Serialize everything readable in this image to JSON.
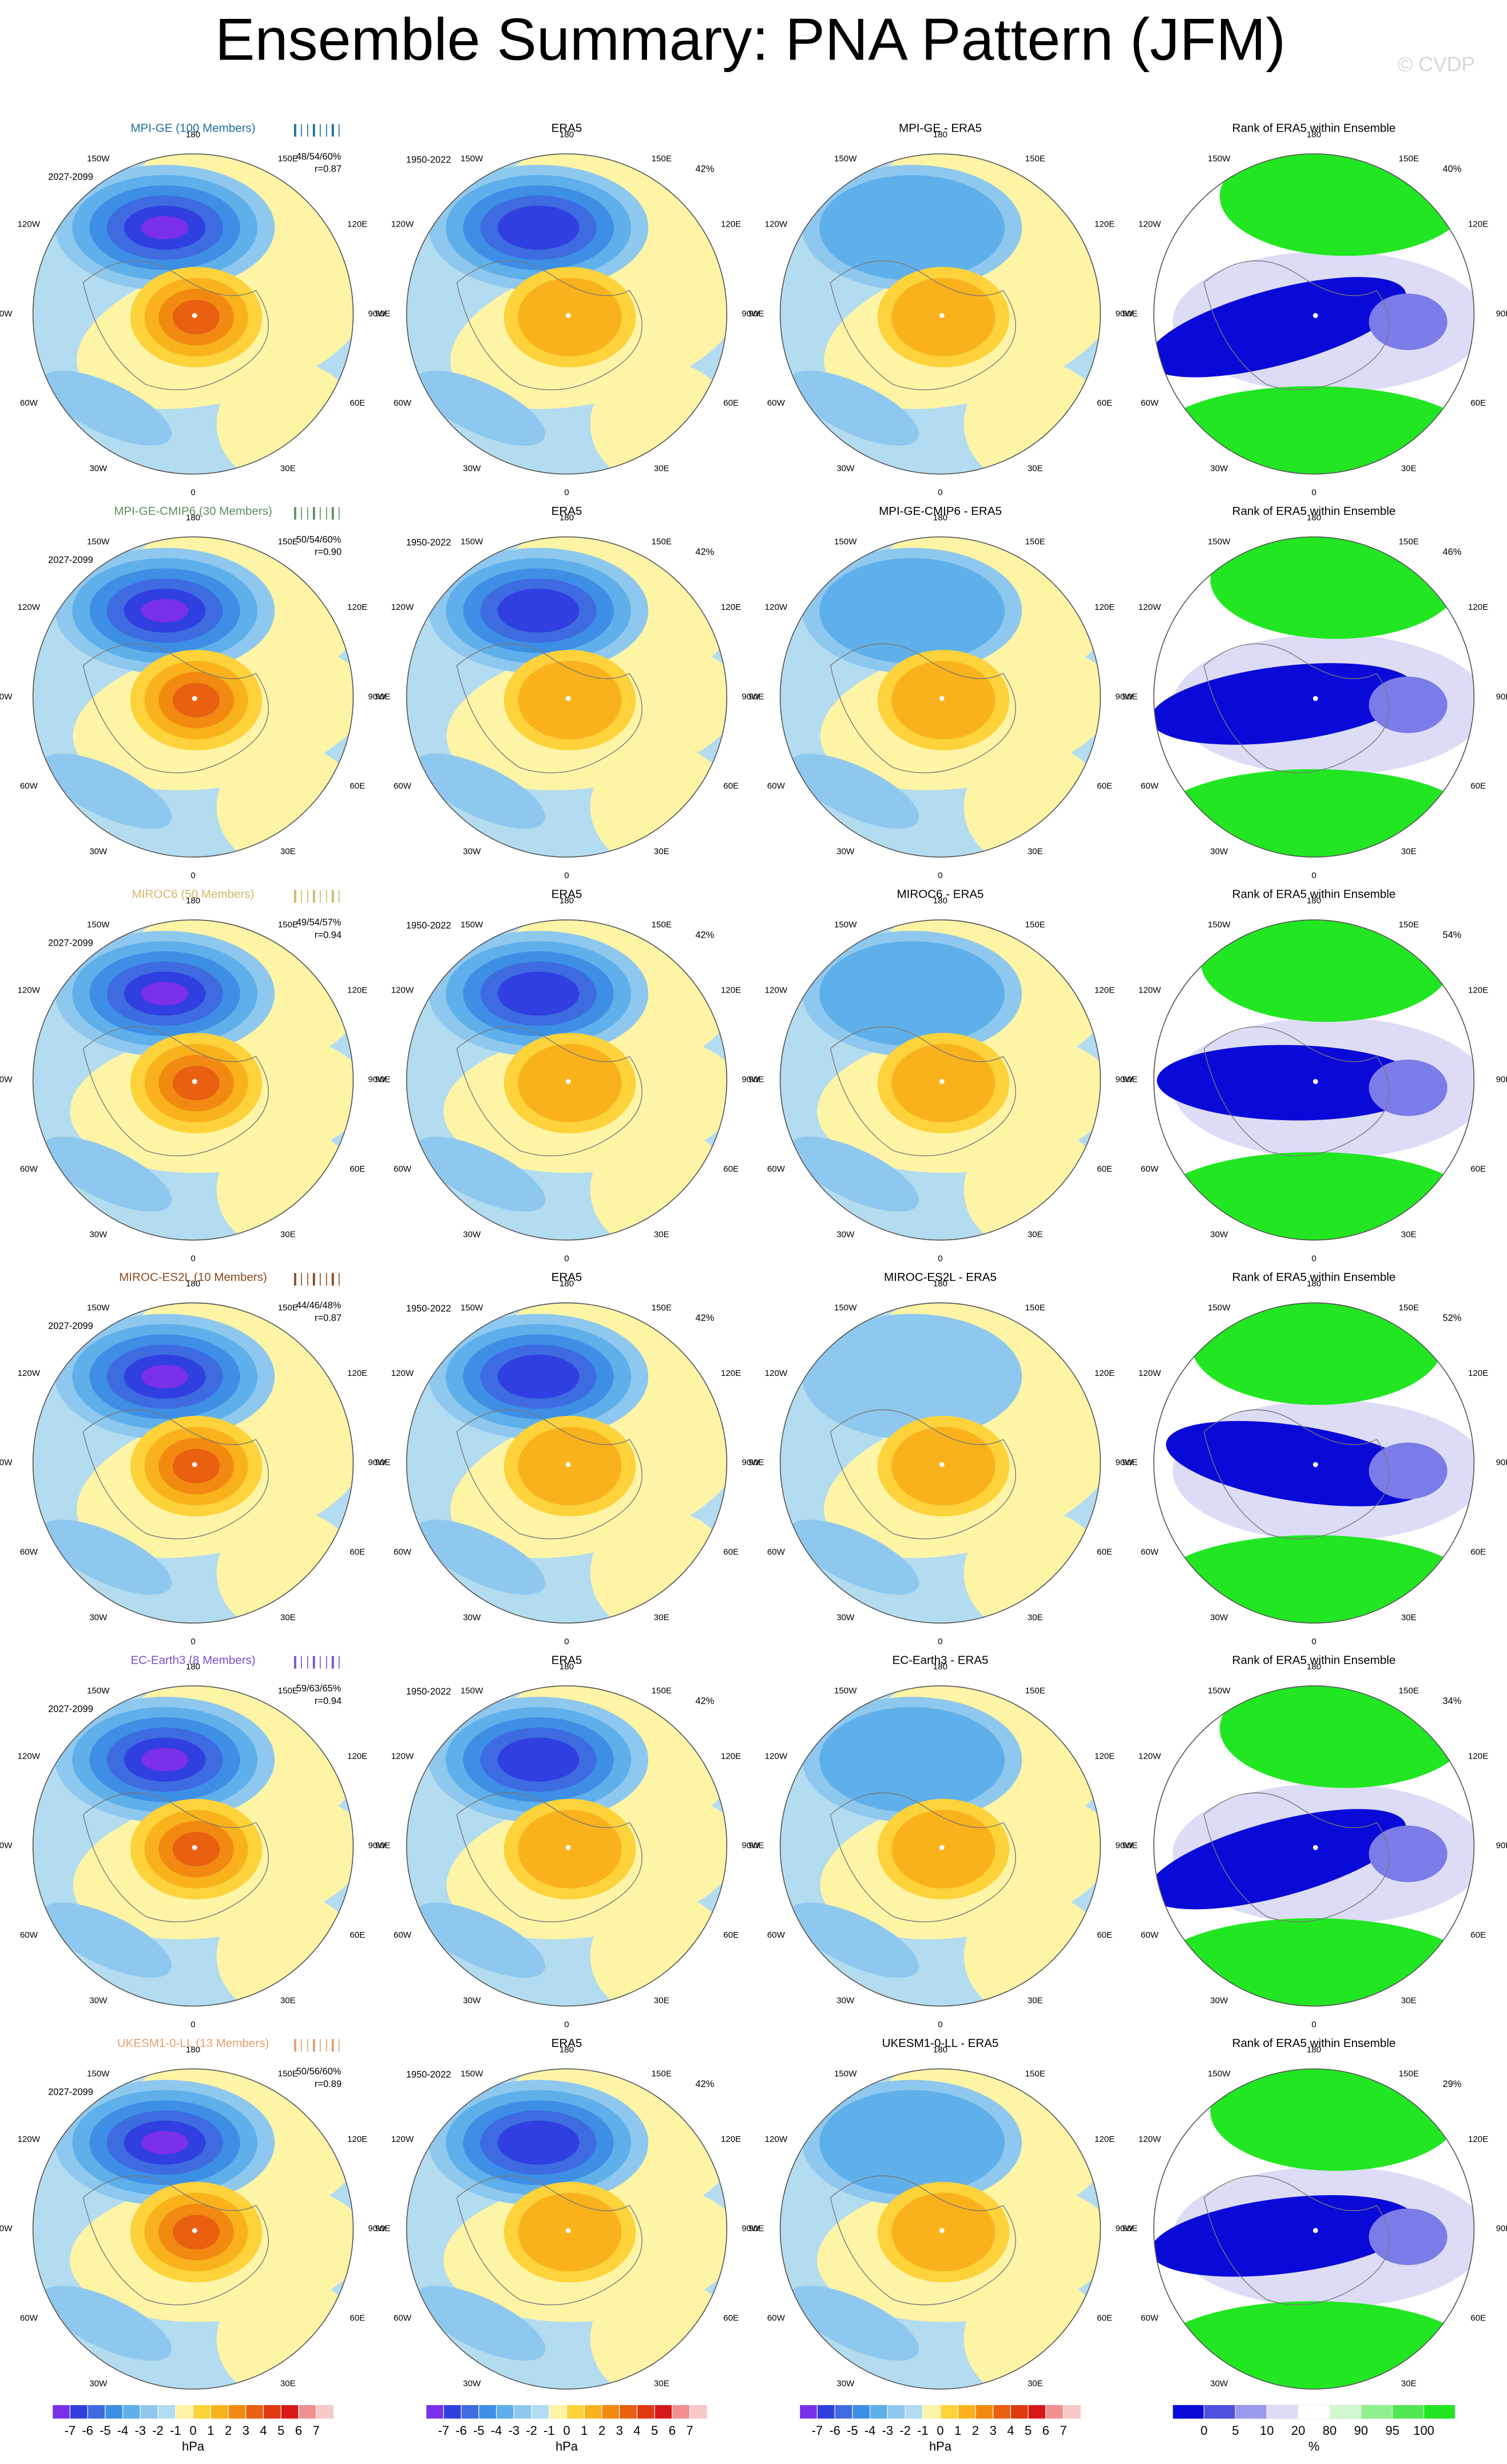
{
  "title": "Ensemble Summary: PNA Pattern (JFM)",
  "watermark": "© CVDP",
  "lon_labels": [
    "180",
    "150W",
    "150E",
    "120W",
    "120E",
    "90W",
    "90E",
    "60W",
    "60E",
    "30W",
    "30E",
    "0"
  ],
  "rows": [
    {
      "model": "MPI-GE (100 Members)",
      "model_color": "#1f6e9c",
      "period": "2027-2099",
      "stats": "48/54/60%",
      "r": "r=0.87",
      "obs_title": "ERA5",
      "obs_period": "1950-2022",
      "obs_pct": "42%",
      "diff_title": "MPI-GE - ERA5",
      "rank_title": "Rank of ERA5 within Ensemble",
      "rank_pct": "40%"
    },
    {
      "model": "MPI-GE-CMIP6 (30 Members)",
      "model_color": "#5e8f5e",
      "period": "2027-2099",
      "stats": "50/54/60%",
      "r": "r=0.90",
      "obs_title": "ERA5",
      "obs_period": "1950-2022",
      "obs_pct": "42%",
      "diff_title": "MPI-GE-CMIP6 - ERA5",
      "rank_title": "Rank of ERA5 within Ensemble",
      "rank_pct": "46%"
    },
    {
      "model": "MIROC6 (50 Members)",
      "model_color": "#cdb86a",
      "period": "2027-2099",
      "stats": "49/54/57%",
      "r": "r=0.94",
      "obs_title": "ERA5",
      "obs_period": "1950-2022",
      "obs_pct": "42%",
      "diff_title": "MIROC6 - ERA5",
      "rank_title": "Rank of ERA5 within Ensemble",
      "rank_pct": "54%"
    },
    {
      "model": "MIROC-ES2L (10 Members)",
      "model_color": "#8b4a1c",
      "period": "2027-2099",
      "stats": "44/46/48%",
      "r": "r=0.87",
      "obs_title": "ERA5",
      "obs_period": "1950-2022",
      "obs_pct": "42%",
      "diff_title": "MIROC-ES2L - ERA5",
      "rank_title": "Rank of ERA5 within Ensemble",
      "rank_pct": "52%"
    },
    {
      "model": "EC-Earth3 (8 Members)",
      "model_color": "#7a4fd0",
      "period": "2027-2099",
      "stats": "59/63/65%",
      "r": "r=0.94",
      "obs_title": "ERA5",
      "obs_period": "1950-2022",
      "obs_pct": "42%",
      "diff_title": "EC-Earth3 - ERA5",
      "rank_title": "Rank of ERA5 within Ensemble",
      "rank_pct": "34%"
    },
    {
      "model": "UKESM1-0-LL (13 Members)",
      "model_color": "#e0a070",
      "period": "2027-2099",
      "stats": "50/56/60%",
      "r": "r=0.89",
      "obs_title": "ERA5",
      "obs_period": "1950-2022",
      "obs_pct": "42%",
      "diff_title": "UKESM1-0-LL - ERA5",
      "rank_title": "Rank of ERA5 within Ensemble",
      "rank_pct": "29%"
    }
  ],
  "pressure_colorbar": {
    "labels": [
      "-7",
      "-6",
      "-5",
      "-4",
      "-3",
      "-2",
      "-1",
      "0",
      "1",
      "2",
      "3",
      "4",
      "5",
      "6",
      "7"
    ],
    "unit": "hPa"
  },
  "rank_colorbar": {
    "labels": [
      "0",
      "5",
      "10",
      "20",
      "80",
      "90",
      "95",
      "100"
    ],
    "unit": "%"
  }
}
